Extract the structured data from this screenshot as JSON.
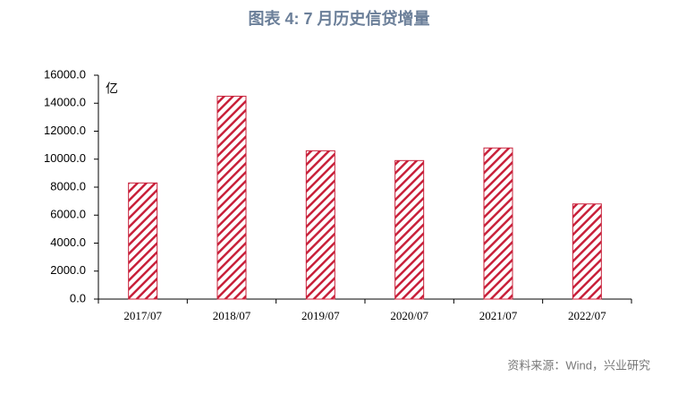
{
  "chart_data": {
    "type": "bar",
    "title": "图表 4:  7 月历史信贷增量",
    "unit_label": "亿",
    "source": "资料来源：Wind，兴业研究",
    "categories": [
      "2017/07",
      "2018/07",
      "2019/07",
      "2020/07",
      "2021/07",
      "2022/07"
    ],
    "values": [
      8300,
      14500,
      10600,
      9900,
      10800,
      6800
    ],
    "color": "#c8203a",
    "hatch": true,
    "ylim": [
      0,
      16000
    ],
    "yticks": [
      {
        "value": 0,
        "label": "0.0"
      },
      {
        "value": 2000,
        "label": "2000.0"
      },
      {
        "value": 4000,
        "label": "4000.0"
      },
      {
        "value": 6000,
        "label": "6000.0"
      },
      {
        "value": 8000,
        "label": "8000.0"
      },
      {
        "value": 10000,
        "label": "10000.0"
      },
      {
        "value": 12000,
        "label": "12000.0"
      },
      {
        "value": 14000,
        "label": "14000.0"
      },
      {
        "value": 16000,
        "label": "16000.0"
      }
    ]
  }
}
